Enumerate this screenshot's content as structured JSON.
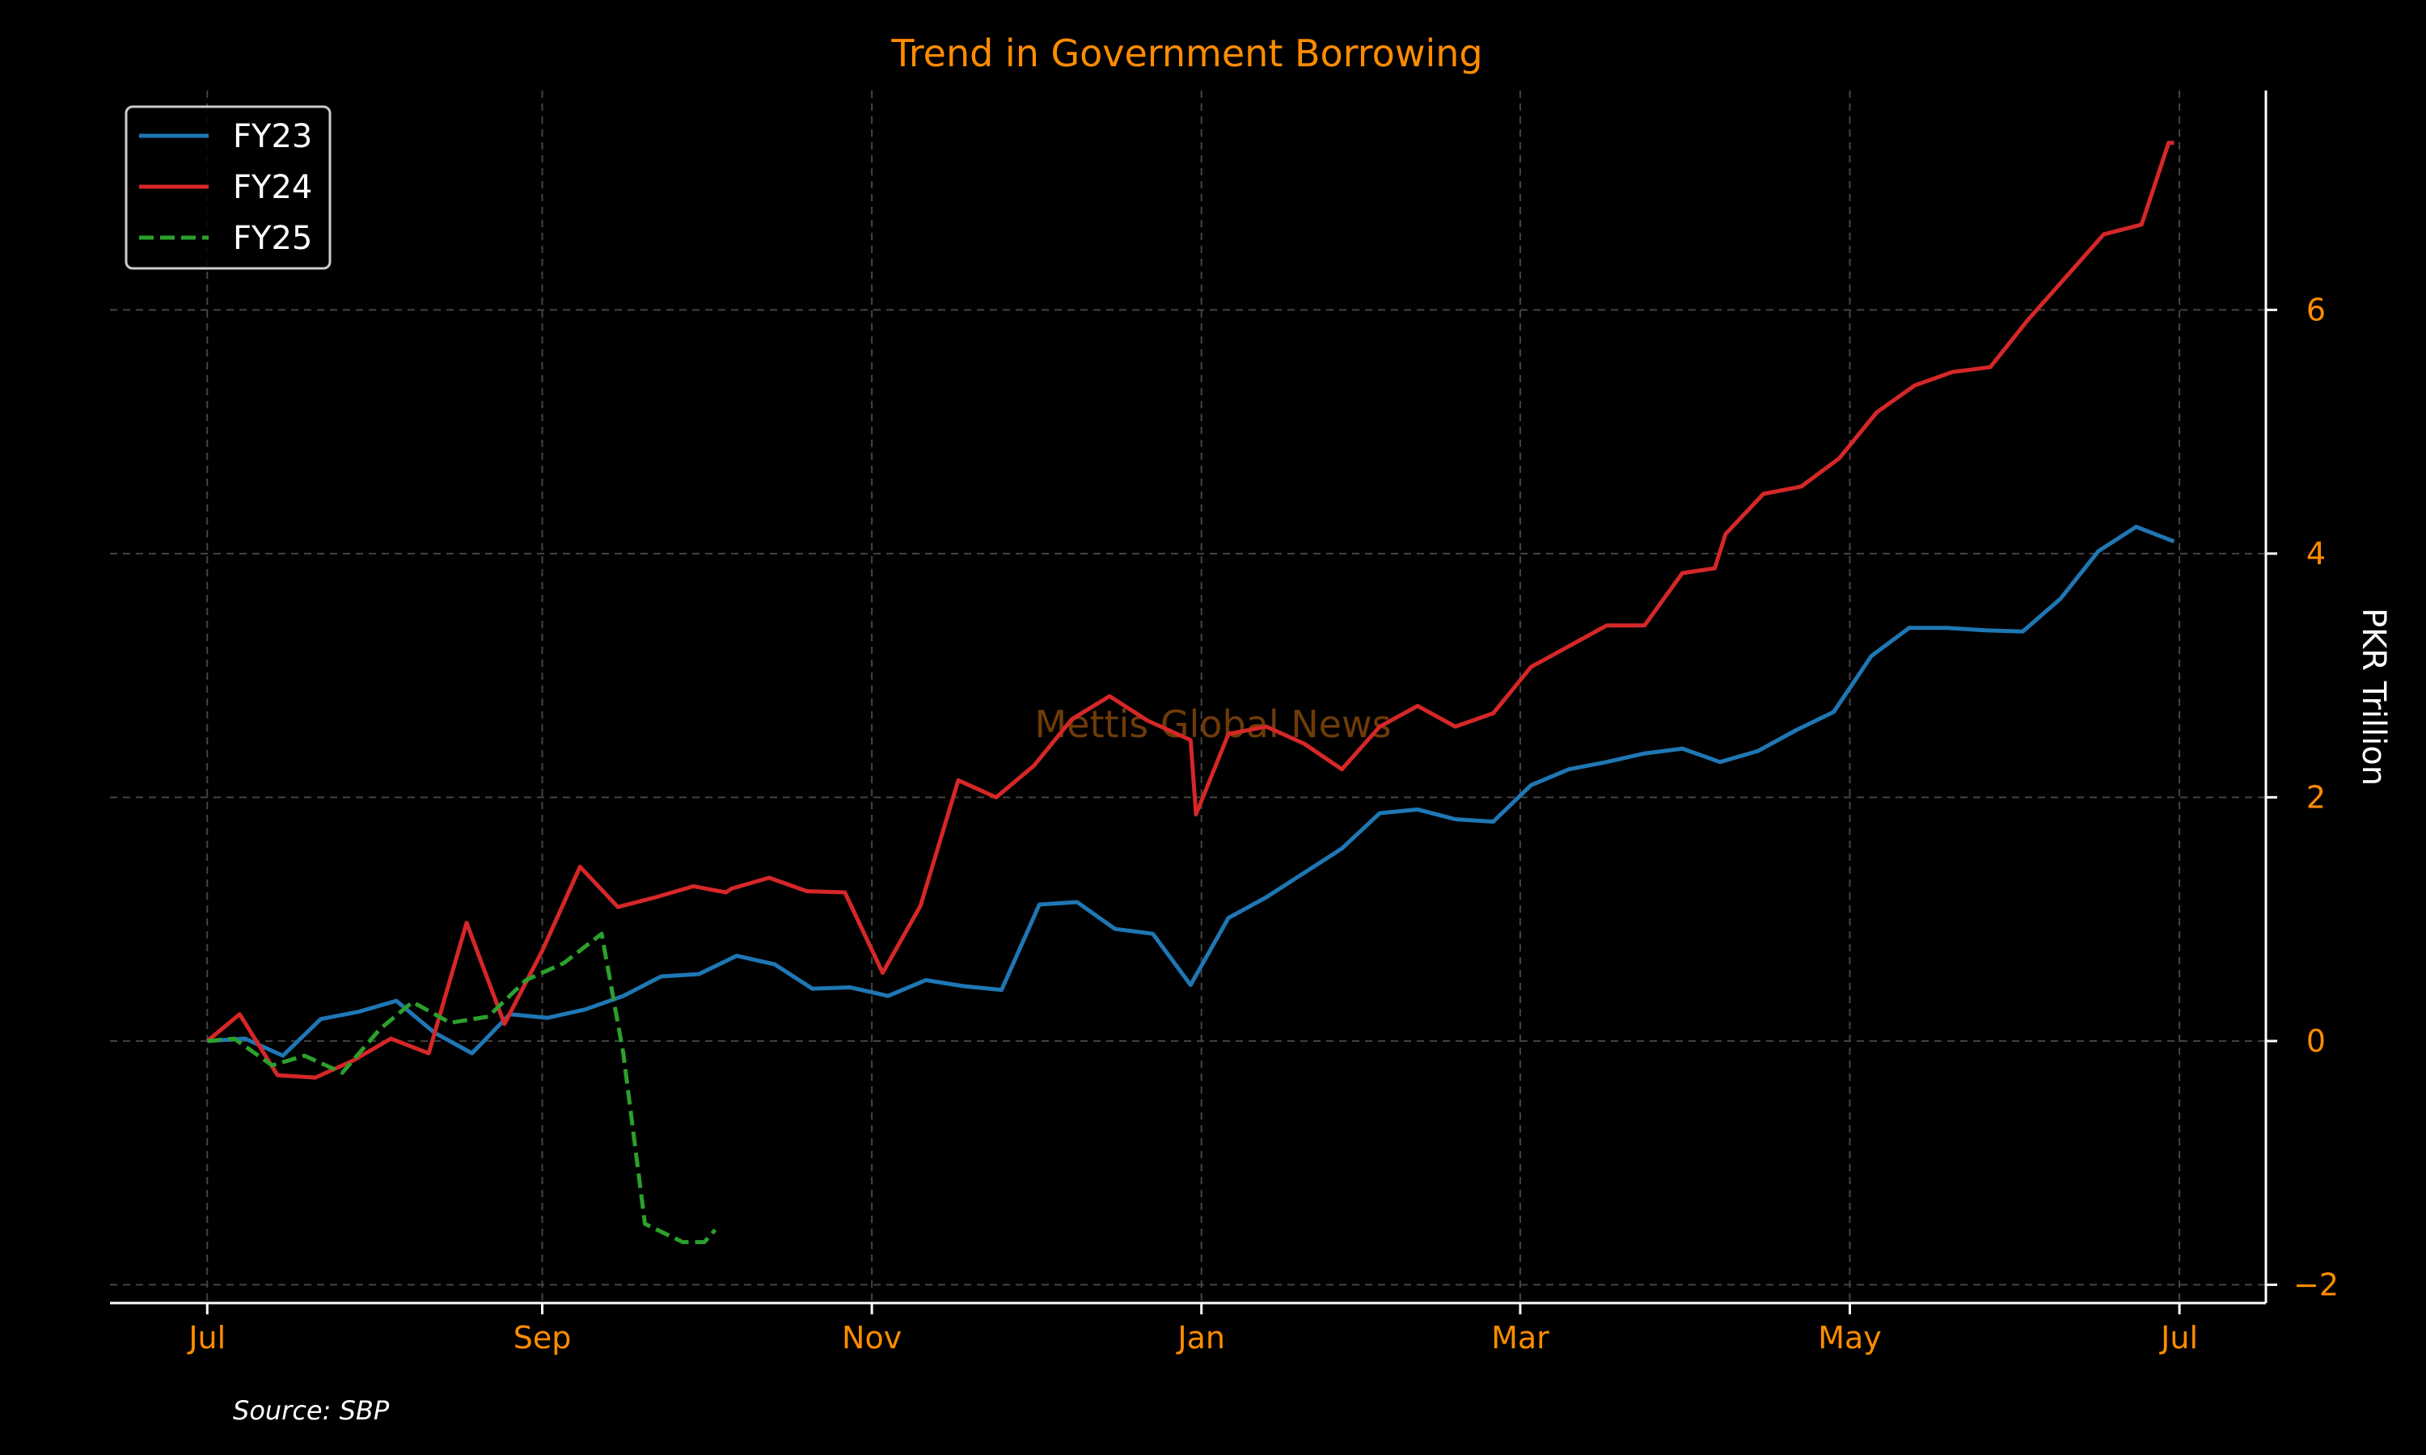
{
  "chart_data": {
    "type": "line",
    "title": "Trend in Government Borrowing",
    "ylabel": "PKR Trillion",
    "xlabel": "",
    "x_ticks": [
      {
        "label": "Jul",
        "x": 0
      },
      {
        "label": "Sep",
        "x": 62
      },
      {
        "label": "Nov",
        "x": 123
      },
      {
        "label": "Jan",
        "x": 184
      },
      {
        "label": "Mar",
        "x": 243
      },
      {
        "label": "May",
        "x": 304
      },
      {
        "label": "Jul",
        "x": 365
      }
    ],
    "xlim": [
      -18,
      381
    ],
    "ylim": [
      -2.15,
      7.8
    ],
    "y_ticks": [
      -2,
      0,
      2,
      4,
      6
    ],
    "y_axis_side": "right",
    "grid": true,
    "legend_position": "top-left",
    "source": "Source: SBP",
    "watermark": "Mettis Global News",
    "colors": {
      "background": "#000000",
      "text_accent": "#ff8c00",
      "axis": "#ffffff",
      "grid": "#444444"
    },
    "series": [
      {
        "name": "FY23",
        "color": "#1f77b4",
        "style": "solid",
        "x": [
          0,
          7,
          14,
          21,
          28,
          35,
          42,
          49,
          56,
          63,
          70,
          77,
          84,
          91,
          98,
          105,
          112,
          119,
          126,
          133,
          140,
          147,
          154,
          161,
          168,
          175,
          182,
          189,
          196,
          203,
          210,
          217,
          224,
          231,
          238,
          245,
          252,
          259,
          266,
          273,
          280,
          287,
          294,
          301,
          308,
          315,
          322,
          329,
          336,
          343,
          350,
          357,
          364
        ],
        "values": [
          0,
          0.02,
          -0.12,
          0.18,
          0.24,
          0.33,
          0.07,
          -0.1,
          0.22,
          0.19,
          0.26,
          0.37,
          0.53,
          0.55,
          0.7,
          0.63,
          0.43,
          0.44,
          0.37,
          0.5,
          0.45,
          0.42,
          1.12,
          1.14,
          0.92,
          0.88,
          0.46,
          1.01,
          1.18,
          1.38,
          1.58,
          1.87,
          1.9,
          1.82,
          1.8,
          2.1,
          2.23,
          2.29,
          2.36,
          2.4,
          2.29,
          2.38,
          2.55,
          2.7,
          3.16,
          3.39,
          3.39,
          3.37,
          3.36,
          3.63,
          4.02,
          4.22,
          4.1
        ]
      },
      {
        "name": "FY24",
        "color": "#d62728",
        "style": "solid",
        "x": [
          0,
          6,
          13,
          20,
          27,
          34,
          41,
          48,
          55,
          62,
          69,
          76,
          83,
          90,
          96,
          97,
          104,
          111,
          118,
          125,
          132,
          139,
          146,
          153,
          160,
          167,
          174,
          182,
          183,
          189,
          196,
          203,
          210,
          217,
          224,
          231,
          238,
          245,
          252,
          259,
          266,
          273,
          279,
          281,
          288,
          295,
          302,
          309,
          316,
          323,
          330,
          337,
          344,
          351,
          358,
          363,
          364
        ],
        "values": [
          0,
          0.22,
          -0.28,
          -0.3,
          -0.16,
          0.02,
          -0.1,
          0.97,
          0.14,
          0.74,
          1.43,
          1.1,
          1.18,
          1.27,
          1.22,
          1.25,
          1.34,
          1.23,
          1.22,
          0.56,
          1.11,
          2.14,
          2.0,
          2.26,
          2.64,
          2.83,
          2.63,
          2.47,
          1.86,
          2.52,
          2.58,
          2.44,
          2.23,
          2.58,
          2.75,
          2.58,
          2.69,
          3.07,
          3.24,
          3.41,
          3.41,
          3.84,
          3.88,
          4.16,
          4.49,
          4.55,
          4.78,
          5.16,
          5.38,
          5.49,
          5.53,
          5.92,
          6.27,
          6.62,
          6.7,
          7.37,
          7.37
        ]
      },
      {
        "name": "FY25",
        "color": "#2ca02c",
        "style": "dashed",
        "x": [
          0,
          5,
          12,
          18,
          25,
          32,
          38,
          45,
          52,
          59,
          66,
          73,
          77,
          81,
          88,
          92,
          94
        ],
        "values": [
          0,
          0.02,
          -0.2,
          -0.12,
          -0.26,
          0.1,
          0.32,
          0.15,
          0.2,
          0.5,
          0.64,
          0.88,
          -0.1,
          -1.5,
          -1.65,
          -1.65,
          -1.55
        ]
      }
    ]
  }
}
